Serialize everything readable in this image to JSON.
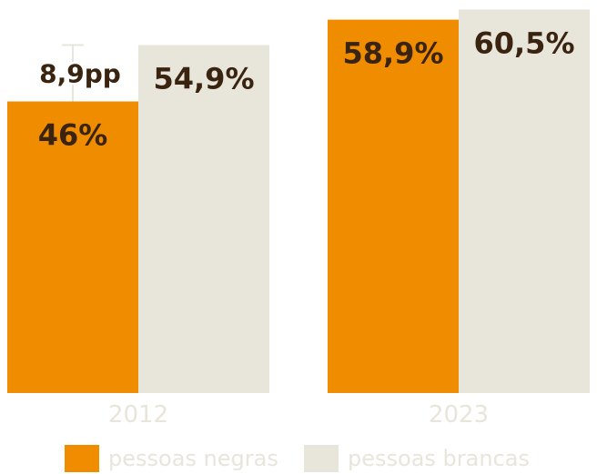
{
  "chart_data": {
    "type": "bar",
    "categories": [
      "2012",
      "2023"
    ],
    "series": [
      {
        "name": "pessoas negras",
        "values": [
          46,
          58.9
        ],
        "labels": [
          "46%",
          "58,9%"
        ],
        "color": "#f08c00"
      },
      {
        "name": "pessoas brancas",
        "values": [
          54.9,
          60.5
        ],
        "labels": [
          "54,9%",
          "60,5%"
        ],
        "color": "#e8e5db"
      }
    ],
    "annotation": {
      "category": "2012",
      "text": "8,9pp"
    },
    "ylim": [
      0,
      62
    ],
    "grid": false,
    "legend_position": "bottom"
  }
}
